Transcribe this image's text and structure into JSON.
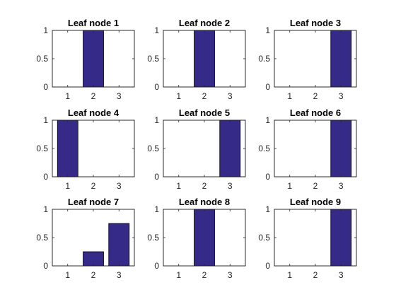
{
  "figure": {
    "bar_color": "#352a87",
    "background": "#ffffff"
  },
  "chart_data": [
    {
      "type": "bar",
      "title": "Leaf node 1",
      "categories": [
        "1",
        "2",
        "3"
      ],
      "values": [
        0,
        1,
        0
      ],
      "xlim": [
        0.4,
        3.6
      ],
      "ylim": [
        0,
        1
      ],
      "yticks": [
        "0",
        "0.5",
        "1"
      ],
      "grid": false
    },
    {
      "type": "bar",
      "title": "Leaf node 2",
      "categories": [
        "1",
        "2",
        "3"
      ],
      "values": [
        0,
        1,
        0
      ],
      "xlim": [
        0.4,
        3.6
      ],
      "ylim": [
        0,
        1
      ],
      "yticks": [
        "0",
        "0.5",
        "1"
      ],
      "grid": false
    },
    {
      "type": "bar",
      "title": "Leaf node 3",
      "categories": [
        "1",
        "2",
        "3"
      ],
      "values": [
        0,
        0,
        1
      ],
      "xlim": [
        0.4,
        3.6
      ],
      "ylim": [
        0,
        1
      ],
      "yticks": [
        "0",
        "0.5",
        "1"
      ],
      "grid": false
    },
    {
      "type": "bar",
      "title": "Leaf node 4",
      "categories": [
        "1",
        "2",
        "3"
      ],
      "values": [
        1,
        0,
        0
      ],
      "xlim": [
        0.4,
        3.6
      ],
      "ylim": [
        0,
        1
      ],
      "yticks": [
        "0",
        "0.5",
        "1"
      ],
      "grid": false
    },
    {
      "type": "bar",
      "title": "Leaf node 5",
      "categories": [
        "1",
        "2",
        "3"
      ],
      "values": [
        0,
        0,
        1
      ],
      "xlim": [
        0.4,
        3.6
      ],
      "ylim": [
        0,
        1
      ],
      "yticks": [
        "0",
        "0.5",
        "1"
      ],
      "grid": false
    },
    {
      "type": "bar",
      "title": "Leaf node 6",
      "categories": [
        "1",
        "2",
        "3"
      ],
      "values": [
        0,
        0,
        1
      ],
      "xlim": [
        0.4,
        3.6
      ],
      "ylim": [
        0,
        1
      ],
      "yticks": [
        "0",
        "0.5",
        "1"
      ],
      "grid": false
    },
    {
      "type": "bar",
      "title": "Leaf node 7",
      "categories": [
        "1",
        "2",
        "3"
      ],
      "values": [
        0,
        0.25,
        0.75
      ],
      "xlim": [
        0.4,
        3.6
      ],
      "ylim": [
        0,
        1
      ],
      "yticks": [
        "0",
        "0.5",
        "1"
      ],
      "grid": false
    },
    {
      "type": "bar",
      "title": "Leaf node 8",
      "categories": [
        "1",
        "2",
        "3"
      ],
      "values": [
        0,
        1,
        0
      ],
      "xlim": [
        0.4,
        3.6
      ],
      "ylim": [
        0,
        1
      ],
      "yticks": [
        "0",
        "0.5",
        "1"
      ],
      "grid": false
    },
    {
      "type": "bar",
      "title": "Leaf node 9",
      "categories": [
        "1",
        "2",
        "3"
      ],
      "values": [
        0,
        0,
        1
      ],
      "xlim": [
        0.4,
        3.6
      ],
      "ylim": [
        0,
        1
      ],
      "yticks": [
        "0",
        "0.5",
        "1"
      ],
      "grid": false
    }
  ]
}
